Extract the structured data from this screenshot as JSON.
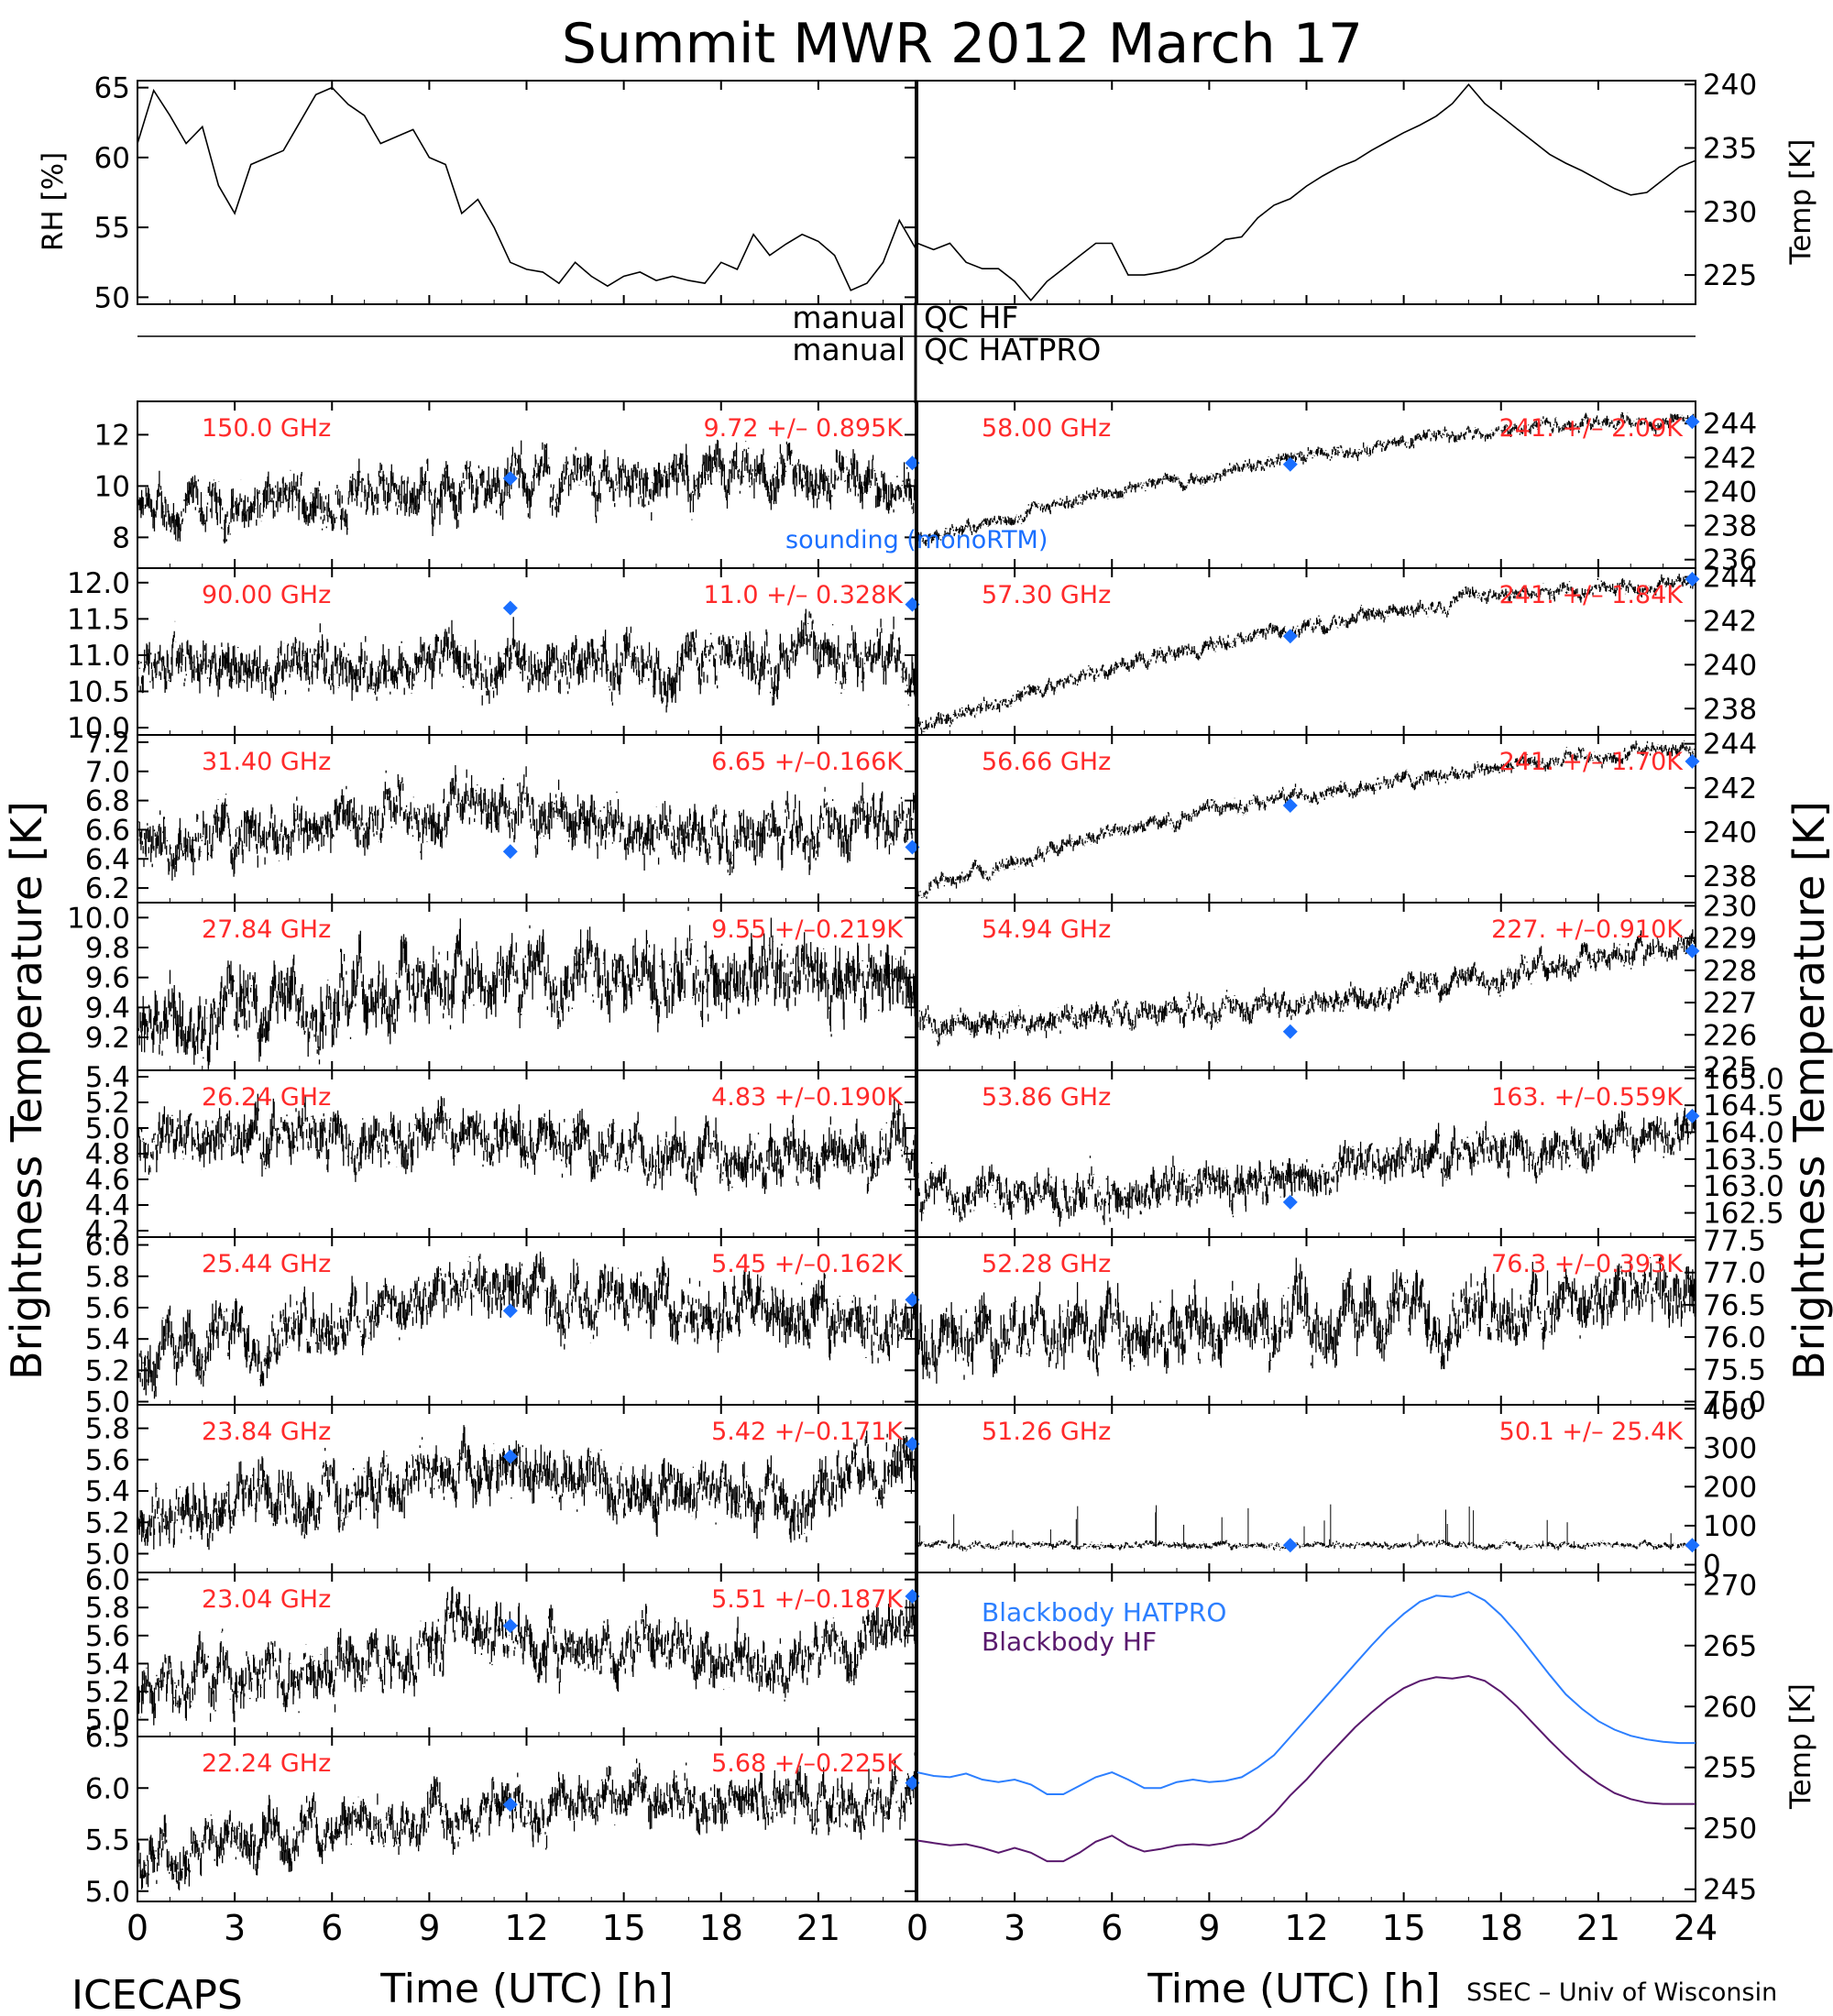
{
  "figure": {
    "title": "Summit MWR 2012 March 17",
    "footer_left": "ICECAPS",
    "footer_right": "SSEC – Univ of Wisconsin",
    "x_label": "Time (UTC) [h]",
    "y_label_left": "Brightness Temperature [K]",
    "y_label_right": "Brightness Temperature [K]",
    "qc_hf_left": "manual",
    "qc_hf_right": "QC HF",
    "qc_hatpro_left": "manual",
    "qc_hatpro_right": "QC HATPRO",
    "sounding_label": "sounding (monoRTM)",
    "colors": {
      "trace": "#000000",
      "channel_text": "#ff2a2a",
      "sounding": "#1a6fff",
      "bb_hatpro": "#2c7fff",
      "bb_hf": "#5a1a6e"
    }
  },
  "chart_data": [
    {
      "id": "rh",
      "type": "line",
      "ylabel": "RH [%]",
      "xlim": [
        0,
        24
      ],
      "ylim": [
        49.5,
        65.5
      ],
      "yticks": [
        50,
        55,
        60,
        65
      ],
      "x": [
        0,
        0.5,
        1,
        1.5,
        2,
        2.5,
        3,
        3.5,
        4,
        4.5,
        5,
        5.5,
        6,
        6.5,
        7,
        7.5,
        8,
        8.5,
        9,
        9.5,
        10,
        10.5,
        11,
        11.5,
        12,
        12.5,
        13,
        13.5,
        14,
        14.5,
        15,
        15.5,
        16,
        16.5,
        17,
        17.5,
        18,
        18.5,
        19,
        19.5,
        20,
        20.5,
        21,
        21.5,
        22,
        22.5,
        23,
        23.5,
        24
      ],
      "values": [
        61,
        64.8,
        63,
        61,
        62.2,
        58,
        56,
        59.5,
        60,
        60.5,
        62.5,
        64.5,
        65,
        63.8,
        63,
        61,
        61.5,
        62,
        60,
        59.5,
        56,
        57,
        55,
        52.5,
        52,
        51.8,
        51,
        52.5,
        51.5,
        50.8,
        51.5,
        51.8,
        51.2,
        51.5,
        51.2,
        51,
        52.5,
        52,
        54.5,
        53,
        53.8,
        54.5,
        54,
        53,
        50.5,
        51,
        52.5,
        55.5,
        53.5
      ]
    },
    {
      "id": "temp",
      "type": "line",
      "ylabel": "Temp [K]",
      "xlim": [
        0,
        24
      ],
      "ylim": [
        222.7,
        240.3
      ],
      "yticks": [
        225,
        230,
        235,
        240
      ],
      "x": [
        0,
        0.5,
        1,
        1.5,
        2,
        2.5,
        3,
        3.5,
        4,
        4.5,
        5,
        5.5,
        6,
        6.5,
        7,
        7.5,
        8,
        8.5,
        9,
        9.5,
        10,
        10.5,
        11,
        11.5,
        12,
        12.5,
        13,
        13.5,
        14,
        14.5,
        15,
        15.5,
        16,
        16.5,
        17,
        17.5,
        18,
        18.5,
        19,
        19.5,
        20,
        20.5,
        21,
        21.5,
        22,
        22.5,
        23,
        23.5,
        24
      ],
      "values": [
        227.5,
        227,
        227.5,
        226,
        225.5,
        225.5,
        224.5,
        223,
        224.5,
        225.5,
        226.5,
        227.5,
        227.5,
        225,
        225,
        225.2,
        225.5,
        226,
        226.8,
        227.8,
        228,
        229.5,
        230.5,
        231,
        232,
        232.8,
        233.5,
        234,
        234.8,
        235.5,
        236.2,
        236.8,
        237.5,
        238.5,
        240,
        238.5,
        237.5,
        236.5,
        235.5,
        234.5,
        233.8,
        233.2,
        232.5,
        231.8,
        231.3,
        231.5,
        232.5,
        233.5,
        234
      ]
    },
    {
      "id": "150.0",
      "type": "scatter",
      "label": "150.0 GHz",
      "stats": "9.72 +/– 0.895K",
      "ylim": [
        6.8,
        13.3
      ],
      "yticks": [
        8,
        10,
        12
      ],
      "trend": [
        [
          0,
          8.8
        ],
        [
          12,
          10.2
        ],
        [
          24,
          10.2
        ]
      ],
      "noise": 0.9,
      "sounding": [
        [
          11.5,
          10.3
        ],
        [
          23.9,
          10.9
        ]
      ]
    },
    {
      "id": "90.00",
      "type": "scatter",
      "label": "90.00 GHz",
      "stats": "11.0 +/– 0.328K",
      "ylim": [
        9.9,
        12.2
      ],
      "yticks": [
        10,
        10.5,
        11,
        11.5,
        12
      ],
      "trend": [
        [
          0,
          10.8
        ],
        [
          24,
          11.0
        ]
      ],
      "noise": 0.33,
      "sounding": [
        [
          11.5,
          11.65
        ],
        [
          23.9,
          11.7
        ]
      ]
    },
    {
      "id": "31.40",
      "type": "scatter",
      "label": "31.40 GHz",
      "stats": "6.65 +/–0.166K",
      "ylim": [
        6.1,
        7.25
      ],
      "yticks": [
        6.2,
        6.4,
        6.6,
        6.8,
        7.0,
        7.2
      ],
      "trend": [
        [
          0,
          6.55
        ],
        [
          12,
          6.75
        ],
        [
          18,
          6.55
        ],
        [
          24,
          6.7
        ]
      ],
      "noise": 0.17,
      "sounding": [
        [
          11.5,
          6.45
        ],
        [
          23.9,
          6.48
        ]
      ]
    },
    {
      "id": "27.84",
      "type": "scatter",
      "label": "27.84 GHz",
      "stats": "9.55 +/–0.219K",
      "ylim": [
        8.98,
        10.1
      ],
      "yticks": [
        9.2,
        9.4,
        9.6,
        9.8,
        10.0
      ],
      "trend": [
        [
          0,
          9.35
        ],
        [
          12,
          9.6
        ],
        [
          24,
          9.6
        ]
      ],
      "noise": 0.22,
      "sounding": []
    },
    {
      "id": "26.24",
      "type": "scatter",
      "label": "26.24 GHz",
      "stats": "4.83 +/–0.190K",
      "ylim": [
        4.15,
        5.45
      ],
      "yticks": [
        4.2,
        4.4,
        4.6,
        4.8,
        5.0,
        5.2,
        5.4
      ],
      "trend": [
        [
          0,
          4.85
        ],
        [
          10,
          5.0
        ],
        [
          16,
          4.75
        ],
        [
          24,
          4.85
        ]
      ],
      "noise": 0.19,
      "sounding": []
    },
    {
      "id": "25.44",
      "type": "scatter",
      "label": "25.44 GHz",
      "stats": "5.45 +/–0.162K",
      "ylim": [
        4.98,
        6.05
      ],
      "yticks": [
        5.0,
        5.2,
        5.4,
        5.6,
        5.8,
        6.0
      ],
      "trend": [
        [
          0,
          5.3
        ],
        [
          11,
          5.7
        ],
        [
          24,
          5.5
        ]
      ],
      "noise": 0.17,
      "sounding": [
        [
          11.5,
          5.58
        ],
        [
          23.9,
          5.65
        ]
      ]
    },
    {
      "id": "23.84",
      "type": "scatter",
      "label": "23.84 GHz",
      "stats": "5.42 +/–0.171K",
      "ylim": [
        4.88,
        5.95
      ],
      "yticks": [
        5.0,
        5.2,
        5.4,
        5.6,
        5.8
      ],
      "trend": [
        [
          0,
          5.2
        ],
        [
          11,
          5.55
        ],
        [
          20,
          5.3
        ],
        [
          24,
          5.6
        ]
      ],
      "noise": 0.17,
      "sounding": [
        [
          11.5,
          5.62
        ],
        [
          23.9,
          5.7
        ]
      ]
    },
    {
      "id": "23.04",
      "type": "scatter",
      "label": "23.04 GHz",
      "stats": "5.51 +/–0.187K",
      "ylim": [
        4.88,
        6.05
      ],
      "yticks": [
        5.0,
        5.2,
        5.4,
        5.6,
        5.8,
        6.0
      ],
      "trend": [
        [
          0,
          5.2
        ],
        [
          11,
          5.6
        ],
        [
          20,
          5.4
        ],
        [
          24,
          5.7
        ]
      ],
      "noise": 0.18,
      "sounding": [
        [
          11.5,
          5.67
        ],
        [
          23.9,
          5.88
        ]
      ]
    },
    {
      "id": "22.24",
      "type": "scatter",
      "label": "22.24 GHz",
      "stats": "5.68 +/–0.225K",
      "ylim": [
        4.9,
        6.5
      ],
      "yticks": [
        5.0,
        5.5,
        6.0,
        6.5
      ],
      "trend": [
        [
          0,
          5.4
        ],
        [
          11,
          5.8
        ],
        [
          24,
          5.9
        ]
      ],
      "noise": 0.22,
      "sounding": [
        [
          11.5,
          5.84
        ],
        [
          23.9,
          6.05
        ]
      ]
    },
    {
      "id": "58.00",
      "type": "scatter",
      "label": "58.00 GHz",
      "stats": "241. +/– 2.09K",
      "ylim": [
        235.5,
        245.3
      ],
      "yticks": [
        236,
        238,
        240,
        242,
        244
      ],
      "trend": [
        [
          0,
          237
        ],
        [
          6,
          240
        ],
        [
          12,
          242
        ],
        [
          18,
          243.8
        ],
        [
          24,
          244.3
        ]
      ],
      "noise": 0.35,
      "sounding": [
        [
          11.5,
          241.6
        ],
        [
          23.9,
          244.1
        ]
      ]
    },
    {
      "id": "57.30",
      "type": "scatter",
      "label": "57.30 GHz",
      "stats": "241. +/– 1.84K",
      "ylim": [
        236.8,
        244.4
      ],
      "yticks": [
        238,
        240,
        242,
        244
      ],
      "trend": [
        [
          0,
          237.2
        ],
        [
          6,
          239.8
        ],
        [
          12,
          241.8
        ],
        [
          18,
          243.2
        ],
        [
          24,
          243.8
        ]
      ],
      "noise": 0.3,
      "sounding": [
        [
          11.5,
          241.3
        ],
        [
          23.9,
          243.9
        ]
      ]
    },
    {
      "id": "56.66",
      "type": "scatter",
      "label": "56.66 GHz",
      "stats": "241. +/– 1.70K",
      "ylim": [
        236.8,
        244.4
      ],
      "yticks": [
        238,
        240,
        242,
        244
      ],
      "trend": [
        [
          0,
          237.3
        ],
        [
          6,
          240
        ],
        [
          12,
          241.8
        ],
        [
          18,
          243
        ],
        [
          24,
          243.8
        ]
      ],
      "noise": 0.3,
      "sounding": [
        [
          11.5,
          241.2
        ],
        [
          23.9,
          243.2
        ]
      ]
    },
    {
      "id": "54.94",
      "type": "scatter",
      "label": "54.94 GHz",
      "stats": "227. +/–0.910K",
      "ylim": [
        224.9,
        230.1
      ],
      "yticks": [
        225,
        226,
        227,
        228,
        229,
        230
      ],
      "trend": [
        [
          0,
          226.3
        ],
        [
          12,
          227
        ],
        [
          24,
          228.8
        ]
      ],
      "noise": 0.35,
      "sounding": [
        [
          11.5,
          226.1
        ],
        [
          23.9,
          228.6
        ]
      ]
    },
    {
      "id": "53.86",
      "type": "scatter",
      "label": "53.86 GHz",
      "stats": "163. +/–0.559K",
      "ylim": [
        162.05,
        165.15
      ],
      "yticks": [
        162.5,
        163.0,
        163.5,
        164.0,
        164.5,
        165.0
      ],
      "trend": [
        [
          0,
          162.9
        ],
        [
          6,
          162.8
        ],
        [
          12,
          163.2
        ],
        [
          24,
          164.1
        ]
      ],
      "noise": 0.35,
      "sounding": [
        [
          11.5,
          162.7
        ],
        [
          23.9,
          164.3
        ]
      ]
    },
    {
      "id": "52.28",
      "type": "scatter",
      "label": "52.28 GHz",
      "stats": "76.3 +/–0.393K",
      "ylim": [
        74.95,
        77.55
      ],
      "yticks": [
        75.0,
        75.5,
        76.0,
        76.5,
        77.0,
        77.5
      ],
      "trend": [
        [
          0,
          75.9
        ],
        [
          12,
          76.3
        ],
        [
          24,
          76.6
        ]
      ],
      "noise": 0.45,
      "sounding": []
    },
    {
      "id": "51.26",
      "type": "scatter",
      "label": "51.26 GHz",
      "stats": "50.1 +/– 25.4K",
      "ylim": [
        -20,
        410
      ],
      "yticks": [
        0,
        100,
        200,
        300,
        400
      ],
      "trend": [
        [
          0,
          50
        ],
        [
          24,
          50
        ]
      ],
      "noise": 8,
      "sounding": [
        [
          11.5,
          50
        ],
        [
          23.9,
          50
        ]
      ]
    },
    {
      "id": "blackbody",
      "type": "line",
      "ylabel": "Temp [K]",
      "ylim": [
        244,
        271
      ],
      "yticks": [
        245,
        250,
        255,
        260,
        265,
        270
      ],
      "legend": [
        "Blackbody HATPRO",
        "Blackbody HF"
      ],
      "x": [
        0,
        0.5,
        1,
        1.5,
        2,
        2.5,
        3,
        3.5,
        4,
        4.5,
        5,
        5.5,
        6,
        6.5,
        7,
        7.5,
        8,
        8.5,
        9,
        9.5,
        10,
        10.5,
        11,
        11.5,
        12,
        12.5,
        13,
        13.5,
        14,
        14.5,
        15,
        15.5,
        16,
        16.5,
        17,
        17.5,
        18,
        18.5,
        19,
        19.5,
        20,
        20.5,
        21,
        21.5,
        22,
        22.5,
        23,
        23.5,
        24
      ],
      "hatpro": [
        254.6,
        254.3,
        254.2,
        254.5,
        254.0,
        253.8,
        254.0,
        253.6,
        252.8,
        252.8,
        253.5,
        254.2,
        254.6,
        254.0,
        253.3,
        253.3,
        253.8,
        254.0,
        253.8,
        253.9,
        254.2,
        255.0,
        256.0,
        257.5,
        259.0,
        260.5,
        262.0,
        263.5,
        265.0,
        266.4,
        267.6,
        268.6,
        269.1,
        269.0,
        269.4,
        268.7,
        267.5,
        266.0,
        264.3,
        262.6,
        261.0,
        259.8,
        258.8,
        258.1,
        257.6,
        257.3,
        257.1,
        257.0,
        257.0
      ],
      "hf": [
        249.0,
        248.8,
        248.6,
        248.7,
        248.4,
        248.0,
        248.4,
        248.0,
        247.3,
        247.3,
        248.0,
        248.9,
        249.4,
        248.6,
        248.1,
        248.3,
        248.6,
        248.7,
        248.6,
        248.8,
        249.2,
        250.0,
        251.2,
        252.7,
        254.0,
        255.5,
        256.9,
        258.3,
        259.5,
        260.6,
        261.5,
        262.1,
        262.4,
        262.3,
        262.5,
        262.1,
        261.2,
        260.0,
        258.6,
        257.2,
        255.9,
        254.7,
        253.7,
        252.9,
        252.4,
        252.1,
        252.0,
        252.0,
        252.0
      ]
    }
  ]
}
